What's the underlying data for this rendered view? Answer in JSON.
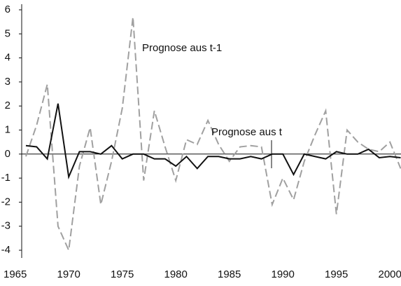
{
  "chart_data": {
    "type": "line",
    "x": [
      1966,
      1967,
      1968,
      1969,
      1970,
      1971,
      1972,
      1973,
      1974,
      1975,
      1976,
      1977,
      1978,
      1979,
      1980,
      1981,
      1982,
      1983,
      1984,
      1985,
      1986,
      1987,
      1988,
      1989,
      1990,
      1991,
      1992,
      1993,
      1994,
      1995,
      1996,
      1997,
      1998,
      1999,
      2000,
      2001
    ],
    "series": [
      {
        "name": "Prognose aus t-1",
        "color": "#a0a0a0",
        "dashed": true,
        "values": [
          -0.1,
          1.2,
          2.9,
          -3.0,
          -4.0,
          -0.5,
          1.1,
          -2.1,
          -0.3,
          1.9,
          5.7,
          -1.1,
          1.8,
          0.3,
          -1.1,
          0.6,
          0.4,
          1.4,
          0.4,
          -0.3,
          0.3,
          0.35,
          0.3,
          -2.1,
          -1.0,
          -1.9,
          -0.3,
          0.8,
          1.8,
          -2.5,
          1.0,
          0.5,
          0.2,
          0.1,
          0.5,
          -0.6
        ]
      },
      {
        "name": "Prognose aus t",
        "color": "#111111",
        "dashed": false,
        "values": [
          0.35,
          0.3,
          -0.2,
          2.1,
          -0.95,
          0.1,
          0.1,
          0.0,
          0.35,
          -0.2,
          0.0,
          0.0,
          -0.2,
          -0.2,
          -0.5,
          -0.1,
          -0.6,
          -0.1,
          -0.1,
          -0.2,
          -0.2,
          -0.1,
          -0.2,
          0.0,
          0.0,
          -0.85,
          0.0,
          -0.1,
          -0.2,
          0.1,
          0.0,
          0.0,
          0.2,
          -0.15,
          -0.1,
          -0.15
        ]
      }
    ],
    "xlim": [
      1965,
      2001
    ],
    "xticks": [
      1965,
      1970,
      1975,
      1980,
      1985,
      1990,
      1995,
      2000
    ],
    "ylim": [
      -4,
      6
    ],
    "yticks": [
      -4,
      -3,
      -2,
      -1,
      0,
      1,
      2,
      3,
      4,
      5,
      6
    ]
  }
}
